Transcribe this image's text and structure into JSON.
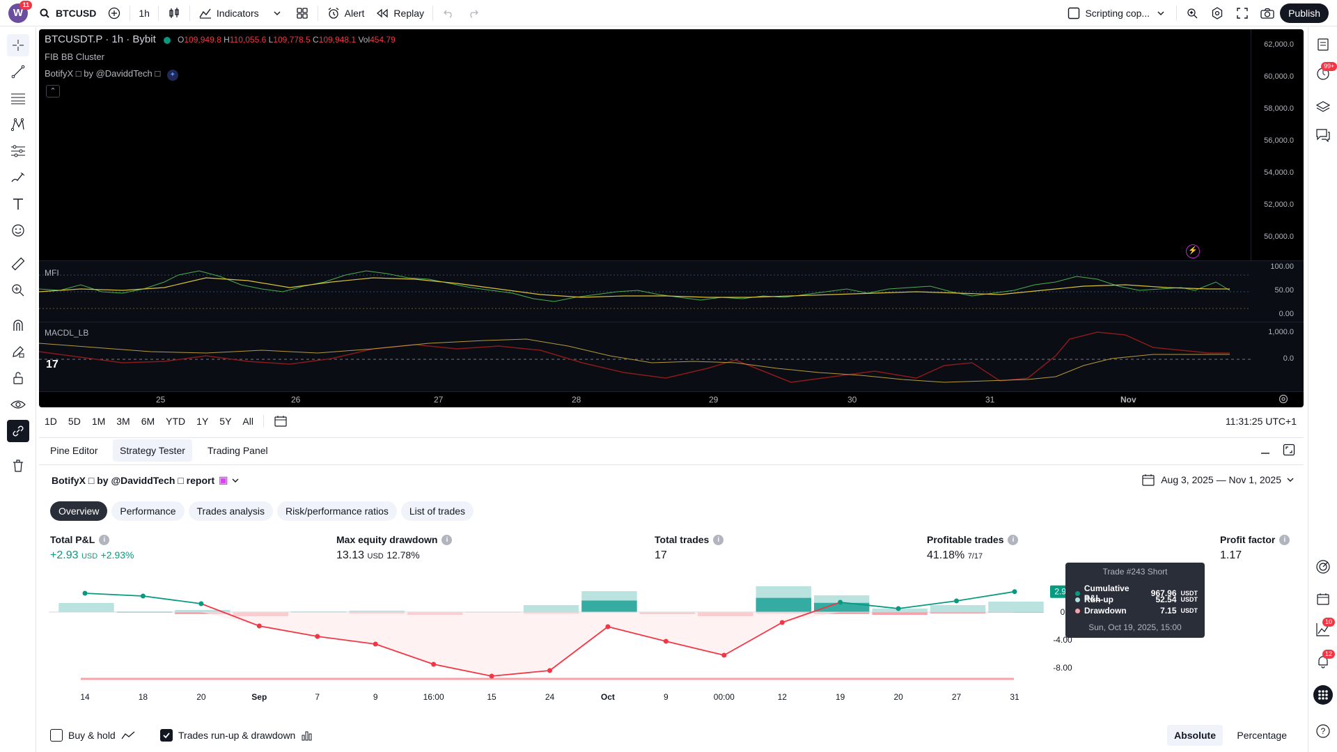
{
  "topbar": {
    "logo_letter": "W",
    "logo_badge": "11",
    "symbol": "BTCUSD",
    "interval": "1h",
    "indicators_label": "Indicators",
    "alert_label": "Alert",
    "replay_label": "Replay",
    "scripting_label": "Scripting cop...",
    "publish_label": "Publish"
  },
  "chart": {
    "symbol_line": "BTCUSDT.P · 1h · Bybit",
    "ohlc": {
      "o_label": "O",
      "o": "109,949.8",
      "h_label": "H",
      "h": "110,055.6",
      "l_label": "L",
      "l": "109,778.5",
      "c_label": "C",
      "c": "109,948.1",
      "vol_label": "Vol",
      "vol": "454.79"
    },
    "indicator1": "FIB BB Cluster",
    "indicator2": "BotifyX □ by @DaviddTech □",
    "price_axis": [
      "62,000.0",
      "60,000.0",
      "58,000.0",
      "56,000.0",
      "54,000.0",
      "52,000.0",
      "50,000.0"
    ],
    "mfi_label": "MFI",
    "mfi_axis": [
      "100.00",
      "50.00",
      "0.00"
    ],
    "macd_label": "MACDL_LB",
    "macd_axis": [
      "1,000.0",
      "0.0"
    ],
    "time_axis": [
      "25",
      "26",
      "27",
      "28",
      "29",
      "30",
      "31",
      "Nov"
    ]
  },
  "range": {
    "buttons": [
      "1D",
      "5D",
      "1M",
      "3M",
      "6M",
      "YTD",
      "1Y",
      "5Y",
      "All"
    ],
    "clock": "11:31:25 UTC+1"
  },
  "panel": {
    "tabs": [
      "Pine Editor",
      "Strategy Tester",
      "Trading Panel"
    ],
    "report_title": "BotifyX □ by @DaviddTech □ report",
    "date_range": "Aug 3, 2025 — Nov 1, 2025",
    "subtabs": [
      "Overview",
      "Performance",
      "Trades analysis",
      "Risk/performance ratios",
      "List of trades"
    ],
    "metrics": {
      "total_pnl_label": "Total P&L",
      "total_pnl_value": "+2.93",
      "total_pnl_unit": "USD",
      "total_pnl_pct": "+2.93%",
      "drawdown_label": "Max equity drawdown",
      "drawdown_value": "13.13",
      "drawdown_unit": "USD",
      "drawdown_pct": "12.78%",
      "trades_label": "Total trades",
      "trades_value": "17",
      "profitable_label": "Profitable trades",
      "profitable_value": "41.18%",
      "profitable_sub": "7/17",
      "pf_label": "Profit factor",
      "pf_value": "1.17"
    },
    "tooltip": {
      "title": "Trade #243 Short",
      "rows": [
        {
          "label": "Cumulative P&L",
          "value": "967.96",
          "unit": "USDT",
          "color": "#089981"
        },
        {
          "label": "Run-up",
          "value": "52.54",
          "unit": "USDT",
          "color": "#b2dfdb"
        },
        {
          "label": "Drawdown",
          "value": "7.15",
          "unit": "USDT",
          "color": "#f7a1a9"
        }
      ],
      "date": "Sun, Oct 19, 2025, 15:00"
    },
    "buy_hold_label": "Buy & hold",
    "runup_label": "Trades run-up & drawdown",
    "absolute_label": "Absolute",
    "percentage_label": "Percentage"
  },
  "chart_data": {
    "type": "line",
    "title": "",
    "x": [
      "14",
      "18",
      "20",
      "Sep",
      "7",
      "9",
      "16:00",
      "15",
      "24",
      "Oct",
      "9",
      "00:00",
      "12",
      "19",
      "20",
      "27",
      "31"
    ],
    "series": [
      {
        "name": "Cumulative P&L",
        "values": [
          2.7,
          2.3,
          1.2,
          -2.0,
          -3.5,
          -4.6,
          -7.5,
          -9.2,
          -8.4,
          -2.1,
          -4.2,
          -6.2,
          -1.5,
          1.4,
          0.5,
          1.6,
          2.93
        ]
      }
    ],
    "runup": [
      1.3,
      0.1,
      0.3,
      0.0,
      0.1,
      0.2,
      0.0,
      0.0,
      1.0,
      3.0,
      0.0,
      0.0,
      3.7,
      2.4,
      0.5,
      1.0,
      1.5
    ],
    "drawdown": [
      0.0,
      0.1,
      0.3,
      0.6,
      0.1,
      0.2,
      0.4,
      0.1,
      0.2,
      0.1,
      0.3,
      0.6,
      0.2,
      0.3,
      0.4,
      0.2,
      0.1
    ],
    "y_ticks": [
      "0",
      "-4.00",
      "-8.00"
    ],
    "last_value_label": "2.93",
    "ylim": [
      -10,
      4
    ]
  }
}
